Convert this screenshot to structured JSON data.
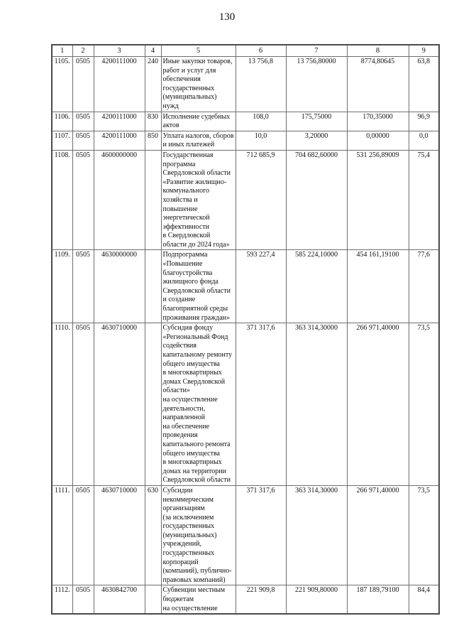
{
  "page_number": "130",
  "table": {
    "column_headers": [
      "1",
      "2",
      "3",
      "4",
      "5",
      "6",
      "7",
      "8",
      "9"
    ],
    "rows": [
      {
        "num": "1105.",
        "section": "0505",
        "target": "4200111000",
        "expense_type": "240",
        "name": "Иные закупки товаров,\nработ и услуг для\nобеспечения\nгосударственных\n(муниципальных) нужд",
        "approved": "13 756,8",
        "plan": "13 756,80000",
        "executed": "8774,80645",
        "percent": "63,8"
      },
      {
        "num": "1106.",
        "section": "0505",
        "target": "4200111000",
        "expense_type": "830",
        "name": "Исполнение судебных\nактов",
        "approved": "108,0",
        "plan": "175,75000",
        "executed": "170,35000",
        "percent": "96,9"
      },
      {
        "num": "1107.",
        "section": "0505",
        "target": "4200111000",
        "expense_type": "850",
        "name": "Уплата налогов, сборов\nи иных платежей",
        "approved": "10,0",
        "plan": "3,20000",
        "executed": "0,00000",
        "percent": "0,0"
      },
      {
        "num": "1108.",
        "section": "0505",
        "target": "4600000000",
        "expense_type": "",
        "name": "Государственная\nпрограмма\nСвердловской области\n«Развитие жилищно-\nкоммунального\nхозяйства и повышение\nэнергетической\nэффективности\nв Свердловской\nобласти до 2024 года»",
        "approved": "712 685,9",
        "plan": "704 682,60000",
        "executed": "531 256,89009",
        "percent": "75,4"
      },
      {
        "num": "1109.",
        "section": "0505",
        "target": "4630000000",
        "expense_type": "",
        "name": "Подпрограмма\n«Повышение\nблагоустройства\nжилищного фонда\nСвердловской области\nи создание\nблагоприятной среды\nпроживания граждан»",
        "approved": "593 227,4",
        "plan": "585 224,10000",
        "executed": "454 161,19100",
        "percent": "77,6"
      },
      {
        "num": "1110.",
        "section": "0505",
        "target": "4630710000",
        "expense_type": "",
        "name": "Субсидия фонду\n«Региональный Фонд\nсодействия\nкапитальному ремонту\nобщего имущества\nв многоквартирных\nдомах Свердловской\nобласти»\nна осуществление\nдеятельности,\nнаправленной\nна обеспечение\nпроведения\nкапитального ремонта\nобщего имущества\nв многоквартирных\nдомах на территории\nСвердловской области",
        "approved": "371 317,6",
        "plan": "363 314,30000",
        "executed": "266 971,40000",
        "percent": "73,5"
      },
      {
        "num": "1111.",
        "section": "0505",
        "target": "4630710000",
        "expense_type": "630",
        "name": "Субсидии\nнекоммерческим\nорганизациям\n(за исключением\nгосударственных\n(муниципальных)\nучреждений,\nгосударственных\nкорпораций\n(компаний), публично-\nправовых компаний)",
        "approved": "371 317,6",
        "plan": "363 314,30000",
        "executed": "266 971,40000",
        "percent": "73,5"
      },
      {
        "num": "1112.",
        "section": "0505",
        "target": "4630842700",
        "expense_type": "",
        "name": "Субвенции местным\nбюджетам\nна осуществление",
        "approved": "221 909,8",
        "plan": "221 909,80000",
        "executed": "187 189,79100",
        "percent": "84,4"
      }
    ]
  }
}
